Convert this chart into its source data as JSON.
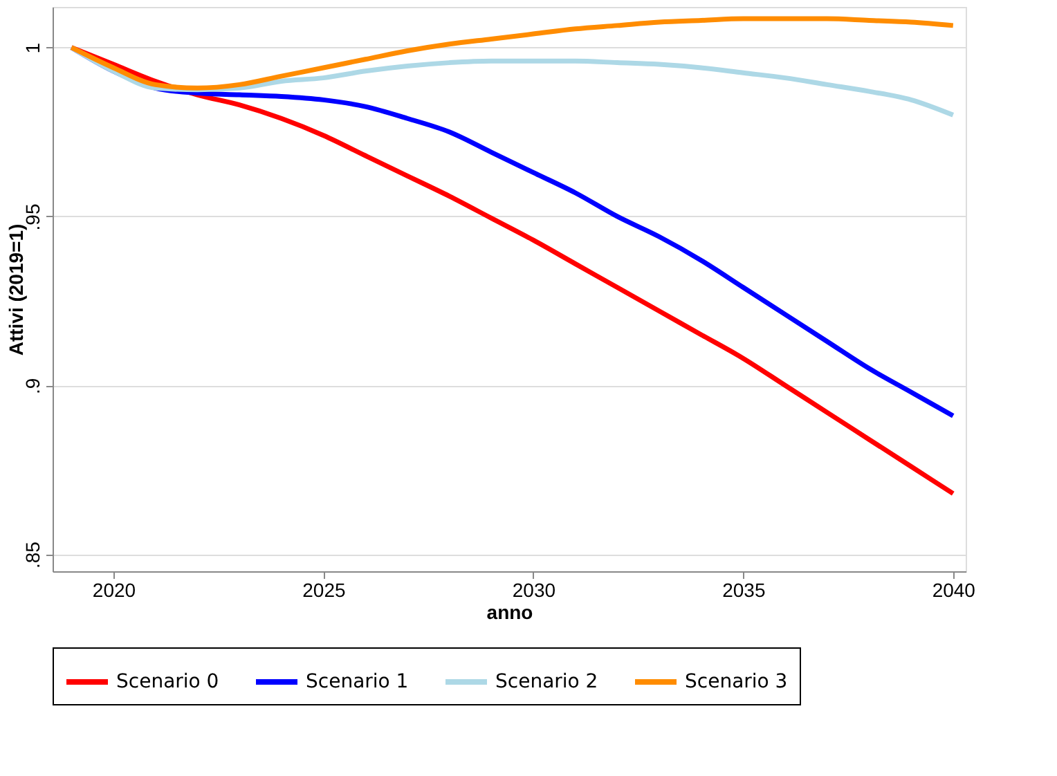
{
  "chart_data": {
    "type": "line",
    "xlabel": "anno",
    "ylabel": "Attivi (2019=1)",
    "x": [
      2019,
      2020,
      2021,
      2022,
      2023,
      2024,
      2025,
      2026,
      2027,
      2028,
      2029,
      2030,
      2031,
      2032,
      2033,
      2034,
      2035,
      2036,
      2037,
      2038,
      2039,
      2040
    ],
    "series": [
      {
        "name": "Scenario 0",
        "color": "#ff0000",
        "values": [
          1,
          0.995,
          0.99,
          0.986,
          0.983,
          0.979,
          0.974,
          0.968,
          0.962,
          0.956,
          0.9495,
          0.943,
          0.936,
          0.929,
          0.922,
          0.915,
          0.908,
          0.9,
          0.892,
          0.884,
          0.876,
          0.868
        ]
      },
      {
        "name": "Scenario 1",
        "color": "#0000ff",
        "values": [
          1,
          0.993,
          0.988,
          0.9865,
          0.986,
          0.9855,
          0.9845,
          0.9825,
          0.979,
          0.975,
          0.969,
          0.963,
          0.957,
          0.95,
          0.944,
          0.937,
          0.929,
          0.921,
          0.913,
          0.905,
          0.898,
          0.891
        ]
      },
      {
        "name": "Scenario 2",
        "color": "#add8e6",
        "values": [
          1,
          0.993,
          0.988,
          0.9875,
          0.988,
          0.99,
          0.991,
          0.993,
          0.9945,
          0.9955,
          0.996,
          0.996,
          0.996,
          0.9955,
          0.995,
          0.994,
          0.9925,
          0.991,
          0.989,
          0.987,
          0.9845,
          0.98
        ]
      },
      {
        "name": "Scenario 3",
        "color": "#ff8c00",
        "values": [
          1,
          0.994,
          0.989,
          0.988,
          0.989,
          0.9915,
          0.994,
          0.9965,
          0.999,
          1.001,
          1.0025,
          1.004,
          1.0055,
          1.0065,
          1.0075,
          1.008,
          1.0085,
          1.0085,
          1.0085,
          1.008,
          1.0075,
          1.0065
        ]
      }
    ],
    "xlim": [
      2018.55,
      2040.3
    ],
    "xticks": [
      2020,
      2025,
      2030,
      2035,
      2040
    ],
    "ylim": [
      0.845,
      1.012
    ],
    "yticks": [
      {
        "value": 0.85,
        "label": ".85"
      },
      {
        "value": 0.9,
        "label": ".9"
      },
      {
        "value": 0.95,
        "label": ".95"
      },
      1
    ],
    "grid": "y",
    "legend": "bottom",
    "marker": "none",
    "line_style": "solid"
  }
}
